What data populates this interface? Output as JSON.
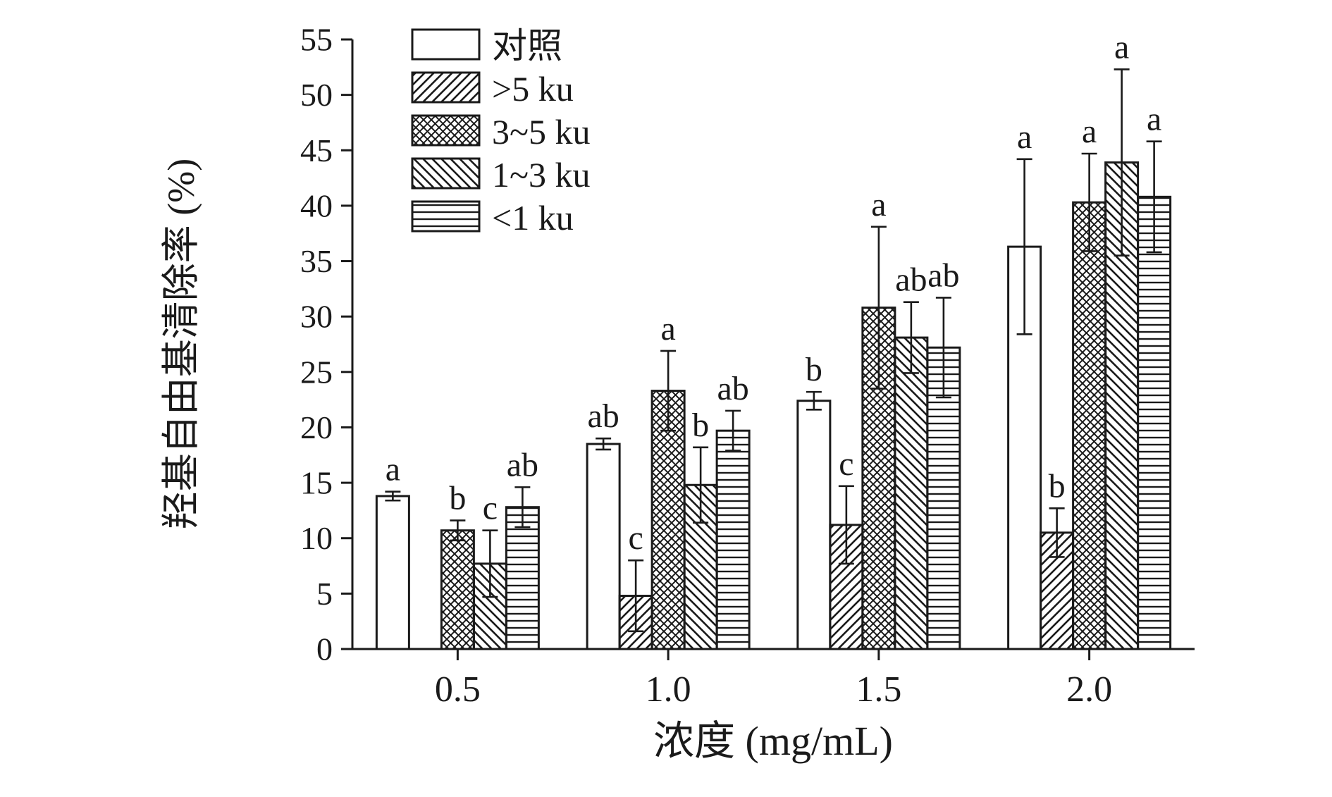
{
  "chart_data": {
    "type": "bar",
    "title": "",
    "xlabel": "浓度 (mg/mL)",
    "ylabel": "羟基自由基清除率 (%)",
    "ylim": [
      0,
      55
    ],
    "ytick_step": 5,
    "grid": false,
    "legend_position": "top-left-inside",
    "categories": [
      "0.5",
      "1.0",
      "1.5",
      "2.0"
    ],
    "series": [
      {
        "key": "control",
        "name": "对照",
        "pattern": "plain",
        "values": [
          13.8,
          18.5,
          22.4,
          36.3
        ],
        "errors": [
          0.4,
          0.5,
          0.8,
          7.9
        ],
        "letters": [
          "a",
          "ab",
          "b",
          "a"
        ]
      },
      {
        "key": "gt-5ku",
        "name": ">5 ku",
        "pattern": "diag-forward",
        "values": [
          0,
          4.8,
          11.2,
          10.5
        ],
        "errors": [
          0,
          3.2,
          3.5,
          2.2
        ],
        "letters": [
          "",
          "c",
          "c",
          "b"
        ]
      },
      {
        "key": "3-5ku",
        "name": "3~5 ku",
        "pattern": "crosshatch",
        "values": [
          10.7,
          23.3,
          30.8,
          40.3
        ],
        "errors": [
          0.9,
          3.6,
          7.3,
          4.4
        ],
        "letters": [
          "b",
          "a",
          "a",
          "a"
        ]
      },
      {
        "key": "1-3ku",
        "name": "1~3 ku",
        "pattern": "diag-back",
        "values": [
          7.7,
          14.8,
          28.1,
          43.9
        ],
        "errors": [
          3.0,
          3.4,
          3.2,
          8.4
        ],
        "letters": [
          "c",
          "b",
          "ab",
          "a"
        ]
      },
      {
        "key": "lt-1ku",
        "name": "<1 ku",
        "pattern": "horizontal",
        "values": [
          12.8,
          19.7,
          27.2,
          40.8
        ],
        "errors": [
          1.8,
          1.8,
          4.5,
          5.0
        ],
        "letters": [
          "ab",
          "ab",
          "ab",
          "a"
        ]
      }
    ],
    "colors": {
      "ink": "#1a1a1a",
      "bar_fill": "#ffffff",
      "background": "#ffffff"
    }
  }
}
